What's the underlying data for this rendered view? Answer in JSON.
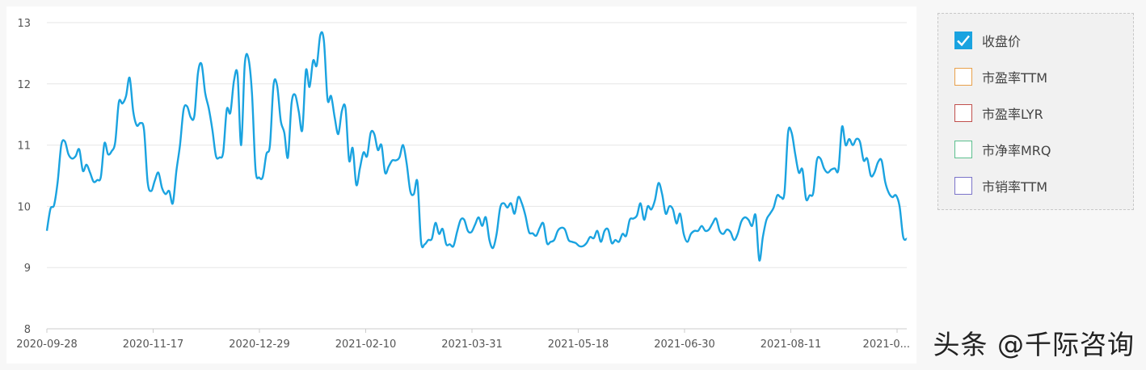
{
  "chart_data": {
    "type": "line",
    "title": "",
    "xlabel": "",
    "ylabel": "",
    "ylim": [
      8,
      13
    ],
    "yticks": [
      8,
      9,
      10,
      11,
      12,
      13
    ],
    "x_tick_labels": [
      "2020-09-28",
      "2020-11-17",
      "2020-12-29",
      "2021-02-10",
      "2021-03-31",
      "2021-05-18",
      "2021-06-30",
      "2021-08-11",
      "2021-0..."
    ],
    "grid": true,
    "legend_position": "right",
    "series": [
      {
        "name": "收盘价",
        "color": "#1aa3e0",
        "values": [
          9.6,
          9.96,
          10.02,
          10.4,
          11.0,
          11.06,
          10.85,
          10.78,
          10.82,
          10.93,
          10.58,
          10.68,
          10.55,
          10.4,
          10.43,
          10.48,
          11.03,
          10.85,
          10.9,
          11.05,
          11.7,
          11.68,
          11.8,
          12.1,
          11.55,
          11.32,
          11.36,
          11.25,
          10.4,
          10.25,
          10.42,
          10.55,
          10.3,
          10.2,
          10.25,
          10.05,
          10.58,
          11.0,
          11.58,
          11.63,
          11.45,
          11.48,
          12.18,
          12.32,
          11.85,
          11.6,
          11.25,
          10.82,
          10.8,
          10.88,
          11.58,
          11.53,
          12.05,
          12.15,
          11.0,
          12.32,
          12.42,
          11.85,
          10.6,
          10.47,
          10.48,
          10.85,
          11.0,
          11.98,
          11.97,
          11.4,
          11.2,
          10.8,
          11.68,
          11.82,
          11.55,
          11.25,
          12.22,
          11.95,
          12.38,
          12.3,
          12.8,
          12.7,
          11.75,
          11.8,
          11.45,
          11.18,
          11.56,
          11.6,
          10.75,
          10.95,
          10.35,
          10.62,
          10.88,
          10.82,
          11.2,
          11.18,
          10.92,
          11.0,
          10.55,
          10.65,
          10.75,
          10.75,
          10.8,
          11.0,
          10.7,
          10.25,
          10.2,
          10.4,
          9.42,
          9.38,
          9.45,
          9.47,
          9.73,
          9.55,
          9.63,
          9.38,
          9.38,
          9.35,
          9.58,
          9.78,
          9.78,
          9.6,
          9.58,
          9.7,
          9.82,
          9.68,
          9.82,
          9.45,
          9.32,
          9.55,
          9.98,
          10.05,
          9.98,
          10.05,
          9.88,
          10.15,
          10.05,
          9.85,
          9.58,
          9.56,
          9.52,
          9.65,
          9.72,
          9.4,
          9.42,
          9.45,
          9.6,
          9.65,
          9.62,
          9.45,
          9.42,
          9.4,
          9.35,
          9.35,
          9.4,
          9.5,
          9.48,
          9.6,
          9.42,
          9.6,
          9.62,
          9.4,
          9.45,
          9.42,
          9.55,
          9.52,
          9.78,
          9.8,
          9.85,
          10.05,
          9.78,
          10.0,
          9.95,
          10.1,
          10.38,
          10.2,
          9.88,
          10.0,
          9.95,
          9.72,
          9.88,
          9.55,
          9.42,
          9.55,
          9.6,
          9.6,
          9.68,
          9.6,
          9.62,
          9.72,
          9.8,
          9.6,
          9.55,
          9.62,
          9.58,
          9.45,
          9.55,
          9.75,
          9.82,
          9.78,
          9.68,
          9.85,
          9.12,
          9.5,
          9.78,
          9.88,
          9.98,
          10.18,
          10.15,
          10.22,
          11.2,
          11.2,
          10.85,
          10.55,
          10.6,
          10.12,
          10.18,
          10.22,
          10.75,
          10.78,
          10.62,
          10.55,
          10.6,
          10.62,
          10.6,
          11.3,
          11.0,
          11.1,
          11.0,
          11.1,
          11.05,
          10.75,
          10.78,
          10.5,
          10.55,
          10.72,
          10.75,
          10.4,
          10.22,
          10.15,
          10.18,
          10.0,
          9.5,
          9.47
        ]
      }
    ],
    "legend_items": [
      {
        "label": "收盘价",
        "color": "#1aa3e0",
        "checked": true
      },
      {
        "label": "市盈率TTM",
        "color": "#e8a04a",
        "checked": false
      },
      {
        "label": "市盈率LYR",
        "color": "#c0504d",
        "checked": false
      },
      {
        "label": "市净率MRQ",
        "color": "#5cbf8e",
        "checked": false
      },
      {
        "label": "市销率TTM",
        "color": "#7b74c9",
        "checked": false
      }
    ]
  },
  "watermark": "头条 @千际咨询"
}
